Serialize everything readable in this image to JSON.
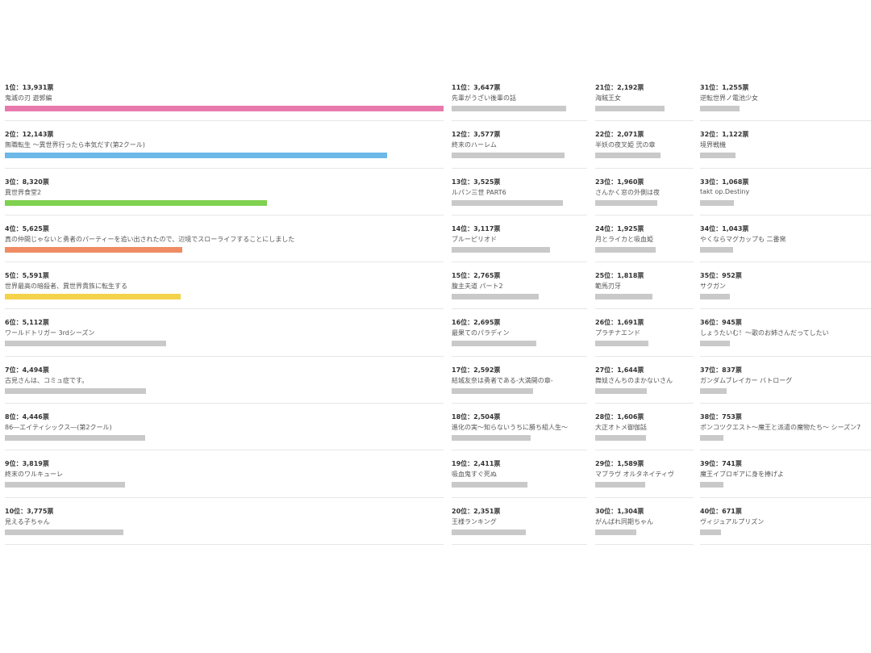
{
  "chart_data": {
    "type": "bar",
    "orientation": "horizontal",
    "vote_suffix": "票",
    "rank_suffix": "位",
    "highlight_colors": [
      "#e879ad",
      "#6cb8e8",
      "#7fd14f",
      "#ef8c63",
      "#f4d34a"
    ],
    "default_color": "#c9c9c9",
    "entries": [
      {
        "rank": 1,
        "votes": "13,931",
        "value": 13931,
        "title": "鬼滅の刃 遊郭編"
      },
      {
        "rank": 2,
        "votes": "12,143",
        "value": 12143,
        "title": "無職転生 ～異世界行ったら本気だす(第2クール)"
      },
      {
        "rank": 3,
        "votes": "8,320",
        "value": 8320,
        "title": "異世界食堂2"
      },
      {
        "rank": 4,
        "votes": "5,625",
        "value": 5625,
        "title": "真の仲間じゃないと勇者のパーティーを追い出されたので、辺境でスローライフすることにしました"
      },
      {
        "rank": 5,
        "votes": "5,591",
        "value": 5591,
        "title": "世界最高の暗殺者、異世界貴族に転生する"
      },
      {
        "rank": 6,
        "votes": "5,112",
        "value": 5112,
        "title": "ワールドトリガー 3rdシーズン"
      },
      {
        "rank": 7,
        "votes": "4,494",
        "value": 4494,
        "title": "古見さんは、コミュ症です。"
      },
      {
        "rank": 8,
        "votes": "4,446",
        "value": 4446,
        "title": "86―エイティシックス―(第2クール)"
      },
      {
        "rank": 9,
        "votes": "3,819",
        "value": 3819,
        "title": "終末のワルキューレ"
      },
      {
        "rank": 10,
        "votes": "3,775",
        "value": 3775,
        "title": "見える子ちゃん"
      },
      {
        "rank": 11,
        "votes": "3,647",
        "value": 3647,
        "title": "先輩がうざい後輩の話"
      },
      {
        "rank": 12,
        "votes": "3,577",
        "value": 3577,
        "title": "終末のハーレム"
      },
      {
        "rank": 13,
        "votes": "3,525",
        "value": 3525,
        "title": "ルパン三世 PART6"
      },
      {
        "rank": 14,
        "votes": "3,117",
        "value": 3117,
        "title": "ブルーピリオド"
      },
      {
        "rank": 15,
        "votes": "2,765",
        "value": 2765,
        "title": "腹主夫道 パート2"
      },
      {
        "rank": 16,
        "votes": "2,695",
        "value": 2695,
        "title": "最果てのパラディン"
      },
      {
        "rank": 17,
        "votes": "2,592",
        "value": 2592,
        "title": "結城友奈は勇者である-大満開の章-"
      },
      {
        "rank": 18,
        "votes": "2,504",
        "value": 2504,
        "title": "進化の実～知らないうちに勝ち組人生～"
      },
      {
        "rank": 19,
        "votes": "2,411",
        "value": 2411,
        "title": "吸血鬼すぐ死ぬ"
      },
      {
        "rank": 20,
        "votes": "2,351",
        "value": 2351,
        "title": "王様ランキング"
      },
      {
        "rank": 21,
        "votes": "2,192",
        "value": 2192,
        "title": "海賊王女"
      },
      {
        "rank": 22,
        "votes": "2,071",
        "value": 2071,
        "title": "半妖の夜叉姫 弐の章"
      },
      {
        "rank": 23,
        "votes": "1,960",
        "value": 1960,
        "title": "さんかく窓の外側は夜"
      },
      {
        "rank": 24,
        "votes": "1,925",
        "value": 1925,
        "title": "月とライカと吸血姫"
      },
      {
        "rank": 25,
        "votes": "1,818",
        "value": 1818,
        "title": "範馬刃牙"
      },
      {
        "rank": 26,
        "votes": "1,691",
        "value": 1691,
        "title": "プラチナエンド"
      },
      {
        "rank": 27,
        "votes": "1,644",
        "value": 1644,
        "title": "舞妓さんちのまかないさん"
      },
      {
        "rank": 28,
        "votes": "1,606",
        "value": 1606,
        "title": "大正オトメ御伽話"
      },
      {
        "rank": 29,
        "votes": "1,589",
        "value": 1589,
        "title": "マブラヴ オルタネイティヴ"
      },
      {
        "rank": 30,
        "votes": "1,304",
        "value": 1304,
        "title": "がんばれ同期ちゃん"
      },
      {
        "rank": 31,
        "votes": "1,255",
        "value": 1255,
        "title": "逆転世界ノ電池少女"
      },
      {
        "rank": 32,
        "votes": "1,122",
        "value": 1122,
        "title": "境界戦機"
      },
      {
        "rank": 33,
        "votes": "1,068",
        "value": 1068,
        "title": "takt op.Destiny"
      },
      {
        "rank": 34,
        "votes": "1,043",
        "value": 1043,
        "title": "やくならマグカップも 二番窯"
      },
      {
        "rank": 35,
        "votes": "952",
        "value": 952,
        "title": "サクガン"
      },
      {
        "rank": 36,
        "votes": "945",
        "value": 945,
        "title": "しょうたいむ！～歌のお姉さんだってしたい"
      },
      {
        "rank": 37,
        "votes": "837",
        "value": 837,
        "title": "ガンダムブレイカー バトローグ"
      },
      {
        "rank": 38,
        "votes": "753",
        "value": 753,
        "title": "ポンコツクエスト～魔王と派遣の魔物たち～ シーズン7"
      },
      {
        "rank": 39,
        "votes": "741",
        "value": 741,
        "title": "魔王イブロギアに身を捧げよ"
      },
      {
        "rank": 40,
        "votes": "671",
        "value": 671,
        "title": "ヴィジュアルプリズン"
      }
    ]
  }
}
